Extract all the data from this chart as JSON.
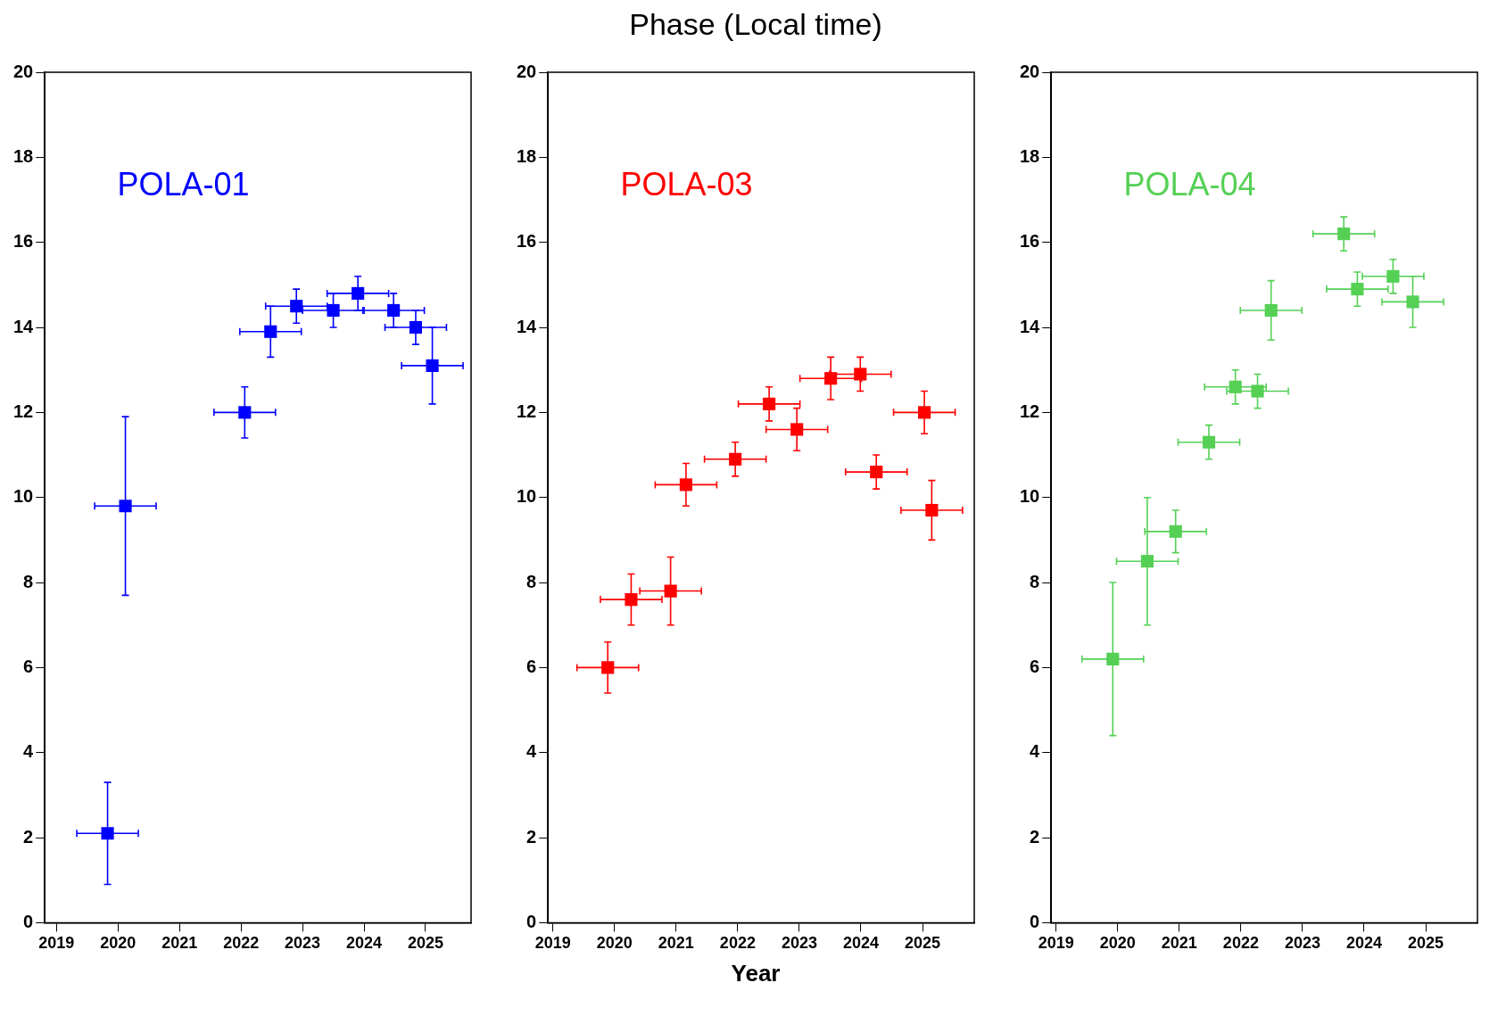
{
  "chart_data": [
    {
      "type": "scatter",
      "marker": "square",
      "grid": false,
      "xlim": [
        2018.81,
        2025.74
      ],
      "xticks": [
        2019,
        2020,
        2021,
        2022,
        2023,
        2024,
        2025
      ],
      "ylim": [
        0,
        20
      ],
      "yticks": [
        0,
        2,
        4,
        6,
        8,
        10,
        12,
        14,
        16,
        18,
        20
      ],
      "series": [
        {
          "name": "POLA-01",
          "color": "#0000ff",
          "x": [
            2019.83,
            2020.12,
            2022.06,
            2022.48,
            2022.9,
            2023.5,
            2023.9,
            2024.48,
            2024.84,
            2025.11
          ],
          "values": [
            2.1,
            9.8,
            12.0,
            13.9,
            14.5,
            14.4,
            14.8,
            14.4,
            14.0,
            13.1
          ],
          "errors": [
            1.2,
            2.1,
            0.6,
            0.6,
            0.4,
            0.4,
            0.4,
            0.4,
            0.4,
            0.9
          ],
          "xerrors": [
            0.5,
            0.5,
            0.5,
            0.5,
            0.5,
            0.5,
            0.5,
            0.5,
            0.5,
            0.5
          ]
        }
      ]
    },
    {
      "type": "scatter",
      "title": "Phase (Local time)",
      "xlabel": "Year",
      "marker": "square",
      "grid": false,
      "xlim": [
        2018.92,
        2025.84
      ],
      "xticks": [
        2019,
        2020,
        2021,
        2022,
        2023,
        2024,
        2025
      ],
      "ylim": [
        0,
        20
      ],
      "yticks": [
        0,
        2,
        4,
        6,
        8,
        10,
        12,
        14,
        16,
        18,
        20
      ],
      "series": [
        {
          "name": "POLA-03",
          "color": "#ff0000",
          "x": [
            2019.89,
            2020.27,
            2020.91,
            2021.16,
            2021.96,
            2022.51,
            2022.96,
            2023.51,
            2023.99,
            2024.25,
            2025.03,
            2025.15
          ],
          "values": [
            6.0,
            7.6,
            7.8,
            10.3,
            10.9,
            12.2,
            11.6,
            12.8,
            12.9,
            10.6,
            12.0,
            9.7
          ],
          "errors": [
            0.6,
            0.6,
            0.8,
            0.5,
            0.4,
            0.4,
            0.5,
            0.5,
            0.4,
            0.4,
            0.5,
            0.7
          ],
          "xerrors": [
            0.5,
            0.5,
            0.5,
            0.5,
            0.5,
            0.5,
            0.5,
            0.5,
            0.5,
            0.5,
            0.5,
            0.5
          ]
        }
      ]
    },
    {
      "type": "scatter",
      "marker": "square",
      "grid": false,
      "xlim": [
        2018.92,
        2025.84
      ],
      "xticks": [
        2019,
        2020,
        2021,
        2022,
        2023,
        2024,
        2025
      ],
      "ylim": [
        0,
        20
      ],
      "yticks": [
        0,
        2,
        4,
        6,
        8,
        10,
        12,
        14,
        16,
        18,
        20
      ],
      "series": [
        {
          "name": "POLA-04",
          "color": "#55d055",
          "x": [
            2019.92,
            2020.48,
            2020.94,
            2021.48,
            2021.91,
            2022.27,
            2022.49,
            2023.67,
            2023.89,
            2024.47,
            2024.79
          ],
          "values": [
            6.2,
            8.5,
            9.2,
            11.3,
            12.6,
            12.5,
            14.4,
            16.2,
            14.9,
            15.2,
            14.6
          ],
          "errors": [
            1.8,
            1.5,
            0.5,
            0.4,
            0.4,
            0.4,
            0.7,
            0.4,
            0.4,
            0.4,
            0.6
          ],
          "xerrors": [
            0.5,
            0.5,
            0.5,
            0.5,
            0.5,
            0.5,
            0.5,
            0.5,
            0.5,
            0.5,
            0.5
          ]
        }
      ]
    }
  ]
}
